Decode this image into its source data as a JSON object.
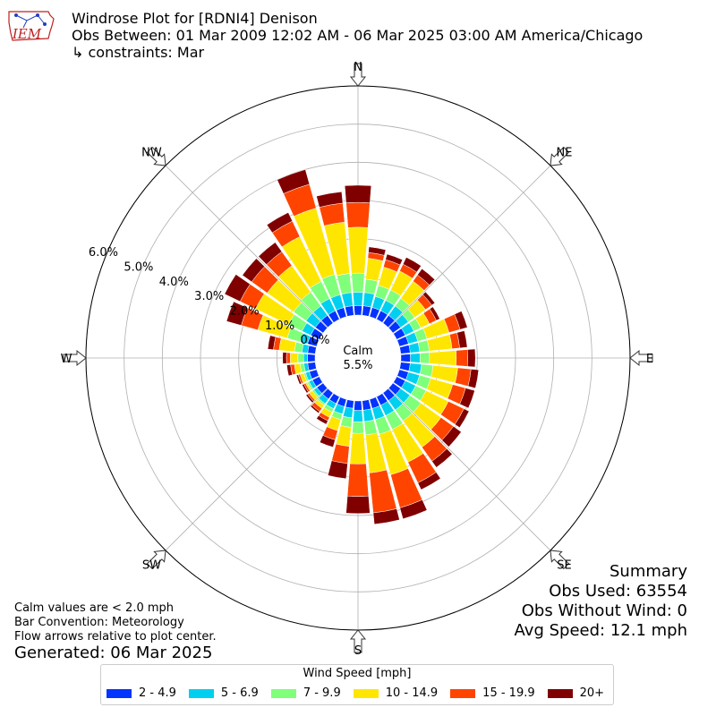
{
  "header": {
    "logo_text": "IEM",
    "title": "Windrose Plot for [RDNI4] Denison",
    "subtitle": "Obs Between: 01 Mar 2009 12:02 AM - 06 Mar 2025 03:00 AM America/Chicago",
    "constraints": "↳ constraints: Mar"
  },
  "notes": {
    "calm_note": "Calm values are < 2.0 mph",
    "bar_convention": "Bar Convention: Meteorology",
    "flow_note": "Flow arrows relative to plot center.",
    "generated": "Generated: 06 Mar 2025"
  },
  "summary": {
    "title": "Summary",
    "obs_used": "Obs Used: 63554",
    "obs_without_wind": "Obs Without Wind: 0",
    "avg_speed": "Avg Speed: 12.1 mph"
  },
  "chart_data": {
    "type": "windrose",
    "calm_label": "Calm",
    "calm_value": "5.5%",
    "radial_ticks": [
      "0.0%",
      "1.0%",
      "2.0%",
      "3.0%",
      "4.0%",
      "5.0%",
      "6.0%"
    ],
    "radial_max": 6.0,
    "direction_labels": [
      "N",
      "NE",
      "E",
      "SE",
      "S",
      "SW",
      "W",
      "NW"
    ],
    "legend_title": "Wind Speed [mph]",
    "speed_bins": [
      {
        "label": "2 - 4.9",
        "color": "#0433ff"
      },
      {
        "label": "5 - 6.9",
        "color": "#00d0f0"
      },
      {
        "label": "7 - 9.9",
        "color": "#80ff7a"
      },
      {
        "label": "10 - 14.9",
        "color": "#ffe600"
      },
      {
        "label": "15 - 19.9",
        "color": "#ff4400"
      },
      {
        "label": "20+",
        "color": "#800000"
      }
    ],
    "directions_deg": [
      0,
      10,
      20,
      30,
      40,
      50,
      60,
      70,
      80,
      90,
      100,
      110,
      120,
      130,
      140,
      150,
      160,
      170,
      180,
      190,
      200,
      210,
      220,
      230,
      240,
      250,
      260,
      270,
      280,
      290,
      300,
      310,
      320,
      330,
      340,
      350
    ],
    "cumulative_percent": [
      [
        0.25,
        0.6,
        1.1,
        2.3,
        2.95,
        3.4
      ],
      [
        0.25,
        0.6,
        0.95,
        1.5,
        1.65,
        1.8
      ],
      [
        0.25,
        0.55,
        0.85,
        1.35,
        1.55,
        1.7
      ],
      [
        0.25,
        0.55,
        0.85,
        1.4,
        1.6,
        1.8
      ],
      [
        0.25,
        0.55,
        0.8,
        1.35,
        1.55,
        1.75
      ],
      [
        0.25,
        0.5,
        0.7,
        1.05,
        1.25,
        1.35
      ],
      [
        0.25,
        0.5,
        0.7,
        0.95,
        1.15,
        1.25
      ],
      [
        0.25,
        0.5,
        0.75,
        1.35,
        1.65,
        1.85
      ],
      [
        0.25,
        0.5,
        0.75,
        1.35,
        1.55,
        1.75
      ],
      [
        0.25,
        0.5,
        0.75,
        1.45,
        1.75,
        1.95
      ],
      [
        0.25,
        0.55,
        0.85,
        1.5,
        1.85,
        2.05
      ],
      [
        0.25,
        0.55,
        0.85,
        1.45,
        1.8,
        2.05
      ],
      [
        0.25,
        0.55,
        0.85,
        1.5,
        1.95,
        2.1
      ],
      [
        0.25,
        0.55,
        0.9,
        1.55,
        1.95,
        2.2
      ],
      [
        0.25,
        0.55,
        0.9,
        1.75,
        2.2,
        2.4
      ],
      [
        0.25,
        0.55,
        0.95,
        1.9,
        2.5,
        2.7
      ],
      [
        0.25,
        0.55,
        0.95,
        2.05,
        2.95,
        3.25
      ],
      [
        0.25,
        0.55,
        0.9,
        1.9,
        2.95,
        3.25
      ],
      [
        0.25,
        0.55,
        0.85,
        1.65,
        2.5,
        2.95
      ],
      [
        0.2,
        0.45,
        0.7,
        1.2,
        1.65,
        2.05
      ],
      [
        0.2,
        0.4,
        0.55,
        0.85,
        1.1,
        1.3
      ],
      [
        0.2,
        0.35,
        0.45,
        0.6,
        0.7,
        0.8
      ],
      [
        0.2,
        0.35,
        0.4,
        0.5,
        0.6,
        0.65
      ],
      [
        0.2,
        0.3,
        0.35,
        0.45,
        0.5,
        0.55
      ],
      [
        0.2,
        0.3,
        0.35,
        0.4,
        0.45,
        0.5
      ],
      [
        0.2,
        0.3,
        0.35,
        0.45,
        0.5,
        0.55
      ],
      [
        0.2,
        0.3,
        0.4,
        0.55,
        0.65,
        0.75
      ],
      [
        0.2,
        0.3,
        0.45,
        0.65,
        0.75,
        0.85
      ],
      [
        0.2,
        0.35,
        0.55,
        0.95,
        1.1,
        1.25
      ],
      [
        0.25,
        0.45,
        0.8,
        1.6,
        2.05,
        2.45
      ],
      [
        0.25,
        0.5,
        0.9,
        1.85,
        2.3,
        2.75
      ],
      [
        0.25,
        0.55,
        0.95,
        1.8,
        2.3,
        2.6
      ],
      [
        0.25,
        0.55,
        1.0,
        1.85,
        2.3,
        2.6
      ],
      [
        0.25,
        0.6,
        1.1,
        2.4,
        2.85,
        3.1
      ],
      [
        0.25,
        0.6,
        1.15,
        2.95,
        3.6,
        4.0
      ],
      [
        0.25,
        0.6,
        1.1,
        2.45,
        2.95,
        3.25
      ]
    ]
  }
}
